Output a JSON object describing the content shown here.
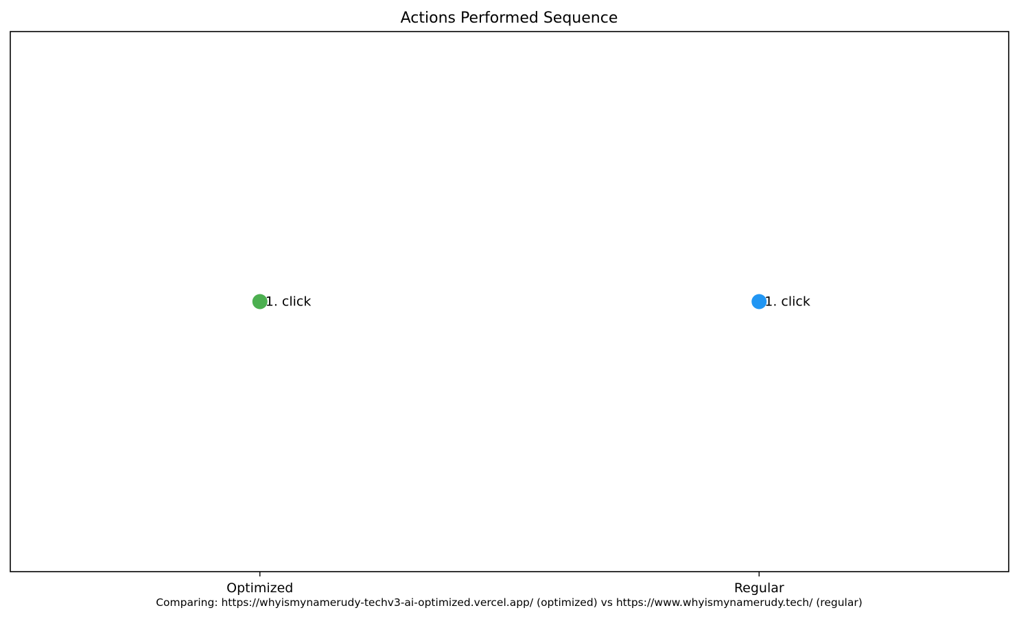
{
  "chart_data": {
    "type": "scatter",
    "title": "Actions Performed Sequence",
    "categories": [
      "Optimized",
      "Regular"
    ],
    "series": [
      {
        "category": "Optimized",
        "color": "#4caf50",
        "points": [
          {
            "step": 1,
            "label": "1. click"
          }
        ]
      },
      {
        "category": "Regular",
        "color": "#2196f3",
        "points": [
          {
            "step": 1,
            "label": "1. click"
          }
        ]
      }
    ],
    "xlim": [
      -0.5,
      1.5
    ],
    "ylim": [
      0,
      2
    ],
    "grid": false,
    "legend": "none",
    "caption": "Comparing: https://whyismynamerudy-techv3-ai-optimized.vercel.app/ (optimized) vs https://www.whyismynamerudy.tech/ (regular)"
  }
}
